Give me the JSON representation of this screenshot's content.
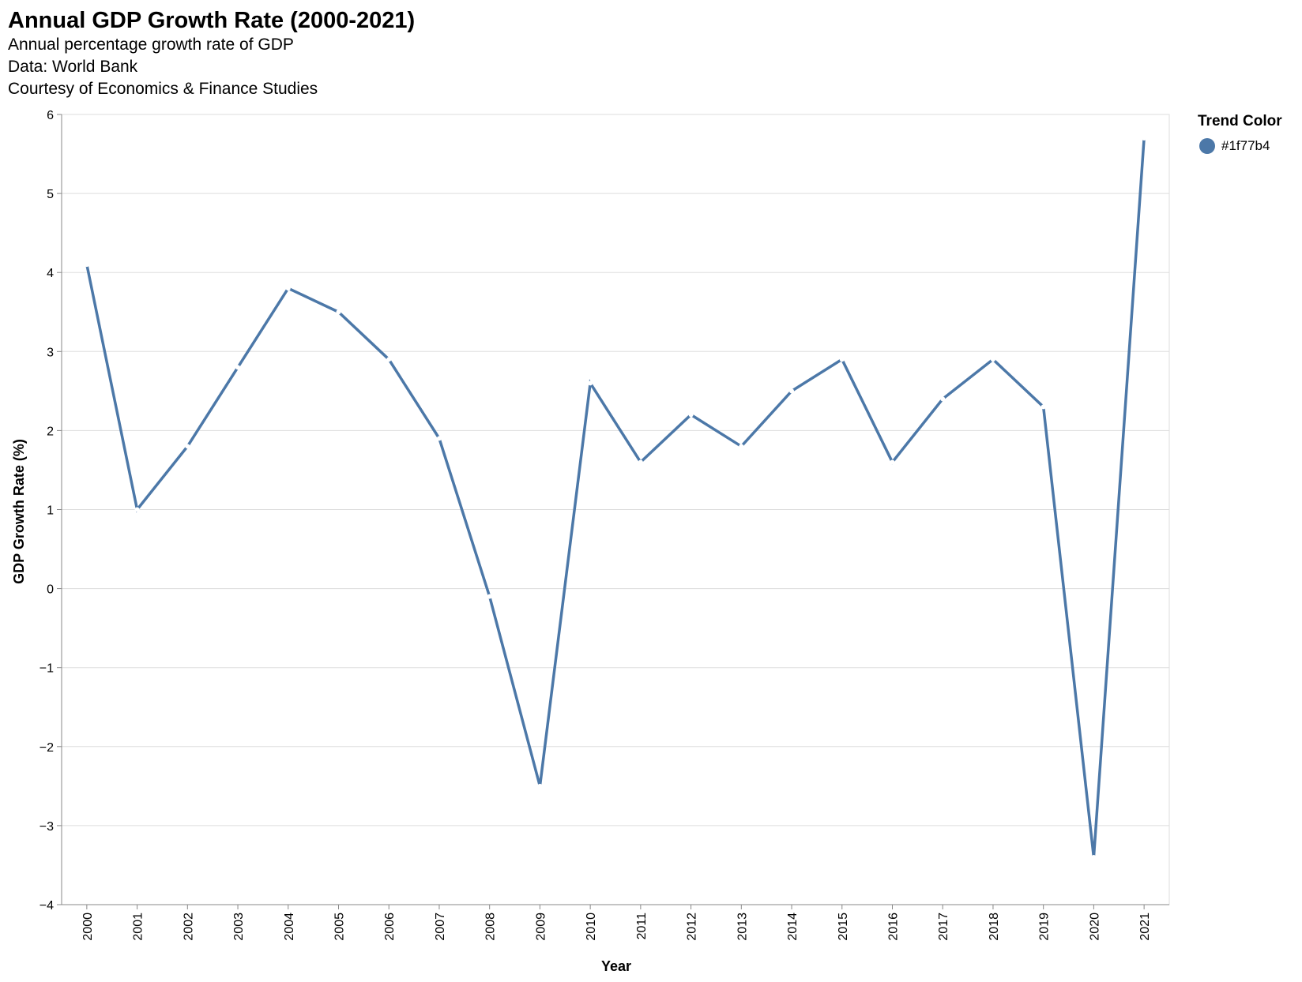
{
  "header": {
    "title": "Annual GDP Growth Rate (2000-2021)",
    "subtitles": [
      "Annual percentage growth rate of GDP",
      "Data: World Bank",
      "Courtesy of Economics & Finance Studies"
    ]
  },
  "legend": {
    "title": "Trend Color",
    "label": "#1f77b4",
    "color": "#4c78a8"
  },
  "chart_data": {
    "type": "line",
    "title": "Annual GDP Growth Rate (2000-2021)",
    "subtitle": [
      "Annual percentage growth rate of GDP",
      "Data: World Bank",
      "Courtesy of Economics & Finance Studies"
    ],
    "xlabel": "Year",
    "ylabel": "GDP Growth Rate (%)",
    "ylim": [
      -4,
      6
    ],
    "yticks": [
      -4,
      -3,
      -2,
      -1,
      0,
      1,
      2,
      3,
      4,
      5,
      6
    ],
    "grid": true,
    "legend_position": "top-right",
    "line_color": "#4c78a8",
    "categories": [
      "2000",
      "2001",
      "2002",
      "2003",
      "2004",
      "2005",
      "2006",
      "2007",
      "2008",
      "2009",
      "2010",
      "2011",
      "2012",
      "2013",
      "2014",
      "2015",
      "2016",
      "2017",
      "2018",
      "2019",
      "2020",
      "2021"
    ],
    "series": [
      {
        "name": "#1f77b4",
        "values": [
          4.1,
          1.0,
          1.8,
          2.8,
          3.8,
          3.5,
          2.9,
          1.9,
          -0.1,
          -2.5,
          2.6,
          1.6,
          2.2,
          1.8,
          2.5,
          2.9,
          1.6,
          2.4,
          2.9,
          2.3,
          -3.4,
          5.7
        ]
      }
    ]
  }
}
